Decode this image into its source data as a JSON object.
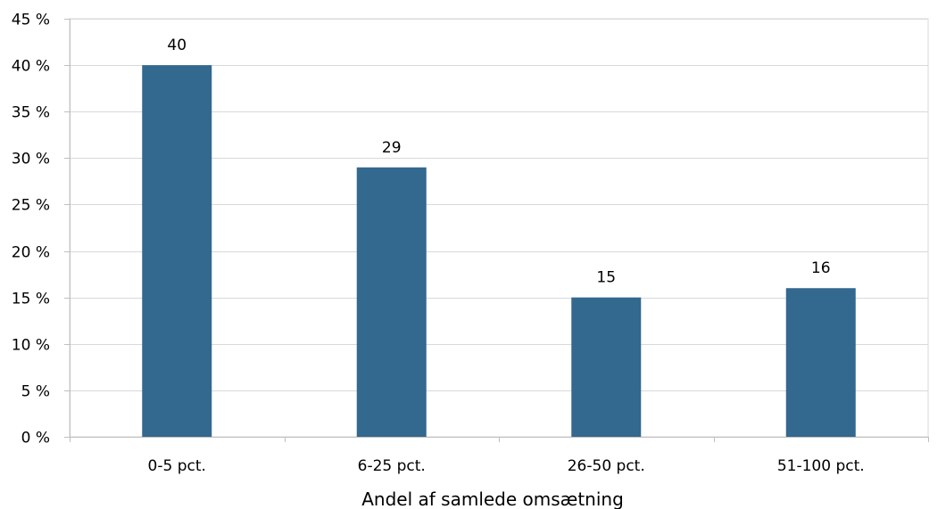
{
  "chart_data": {
    "type": "bar",
    "categories": [
      "0-5 pct.",
      "6-25 pct.",
      "26-50 pct.",
      "51-100 pct."
    ],
    "values": [
      40,
      29,
      15,
      16
    ],
    "data_labels": [
      "40",
      "29",
      "15",
      "16"
    ],
    "title": "",
    "xlabel": "Andel af samlede omsætning",
    "ylabel": "",
    "ylim": [
      0,
      45
    ],
    "yticks": [
      "0 %",
      "5 %",
      "10 %",
      "15 %",
      "20 %",
      "25 %",
      "30 %",
      "35 %",
      "40 %",
      "45 %"
    ],
    "grid": true,
    "legend": "none",
    "colors": {
      "bar": "#33688f",
      "grid": "#d9d9d9",
      "axis": "#bfbfbf",
      "border": "#d9d9d9"
    }
  }
}
